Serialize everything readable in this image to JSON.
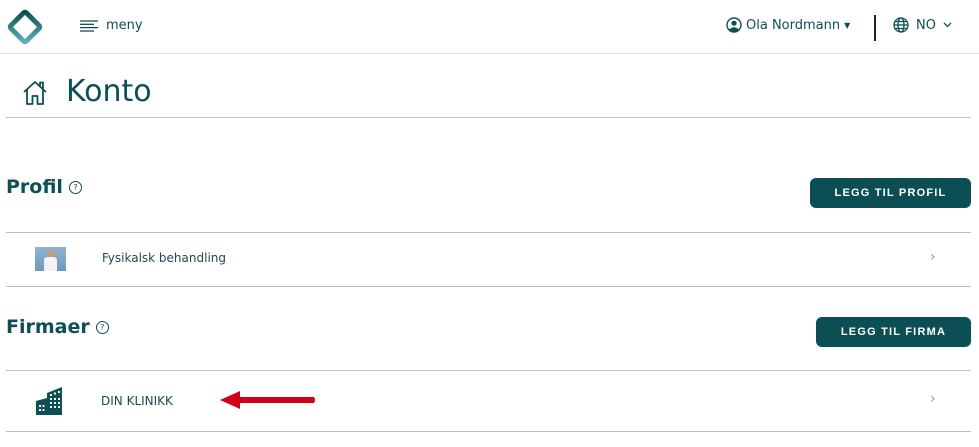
{
  "header": {
    "menu_label": "meny",
    "user_name": "Ola Nordmann",
    "language": "NO"
  },
  "page": {
    "title": "Konto"
  },
  "profile_section": {
    "title": "Profil",
    "help": "?",
    "add_button": "LEGG TIL PROFIL",
    "items": [
      {
        "label": "Fysikalsk behandling"
      }
    ]
  },
  "company_section": {
    "title": "Firmaer",
    "help": "?",
    "add_button": "LEGG TIL FIRMA",
    "items": [
      {
        "label": "DIN KLINIKK"
      }
    ]
  },
  "colors": {
    "primary": "#0b4e54",
    "annotation_arrow": "#d0021b"
  }
}
